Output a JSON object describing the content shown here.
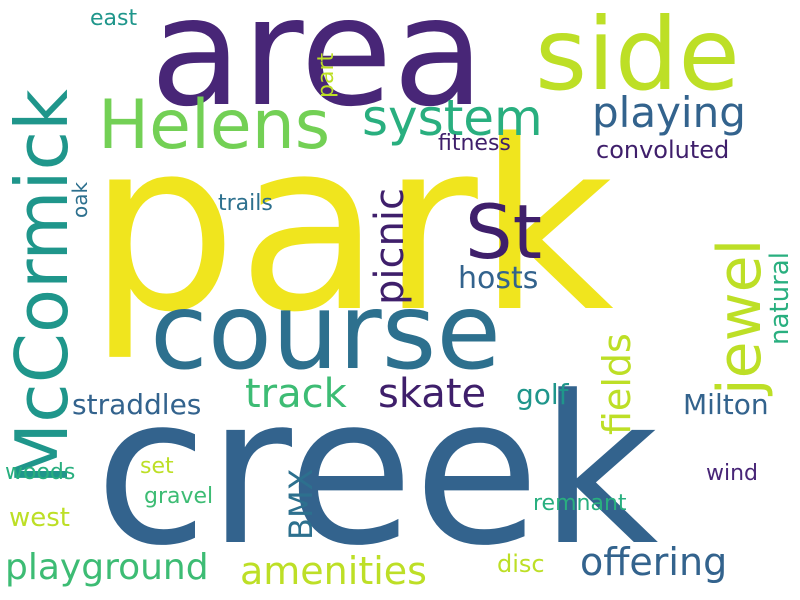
{
  "palette": {
    "dark_purple": "#482677",
    "purple": "#3f1f6b",
    "blue": "#33638d",
    "teal_blue": "#2d708e",
    "teal": "#1f968b",
    "green_teal": "#29af7f",
    "green": "#3dbc74",
    "light_green": "#73d055",
    "yellow_green": "#bddf26",
    "yellow": "#f0e51e",
    "background": "#ffffff"
  },
  "words": {
    "park": "park",
    "creek": "creek",
    "area": "area",
    "course": "course",
    "side": "side",
    "mccormick": "McCormick",
    "helens": "Helens",
    "st": "St",
    "jewel": "jewel",
    "system": "system",
    "playing": "playing",
    "picnic": "picnic",
    "track": "track",
    "skate": "skate",
    "fields": "fields",
    "amenities": "amenities",
    "offering": "offering",
    "playground": "playground",
    "milton": "Milton",
    "straddles": "straddles",
    "golf": "golf",
    "bmx": "BMX",
    "hosts": "hosts",
    "natural": "natural",
    "convoluted": "convoluted",
    "fitness": "fitness",
    "trails": "trails",
    "east": "east",
    "part": "part",
    "oak": "oak",
    "woods": "woods",
    "set": "set",
    "gravel": "gravel",
    "west": "west",
    "remnant": "remnant",
    "wind": "wind",
    "disc": "disc"
  }
}
